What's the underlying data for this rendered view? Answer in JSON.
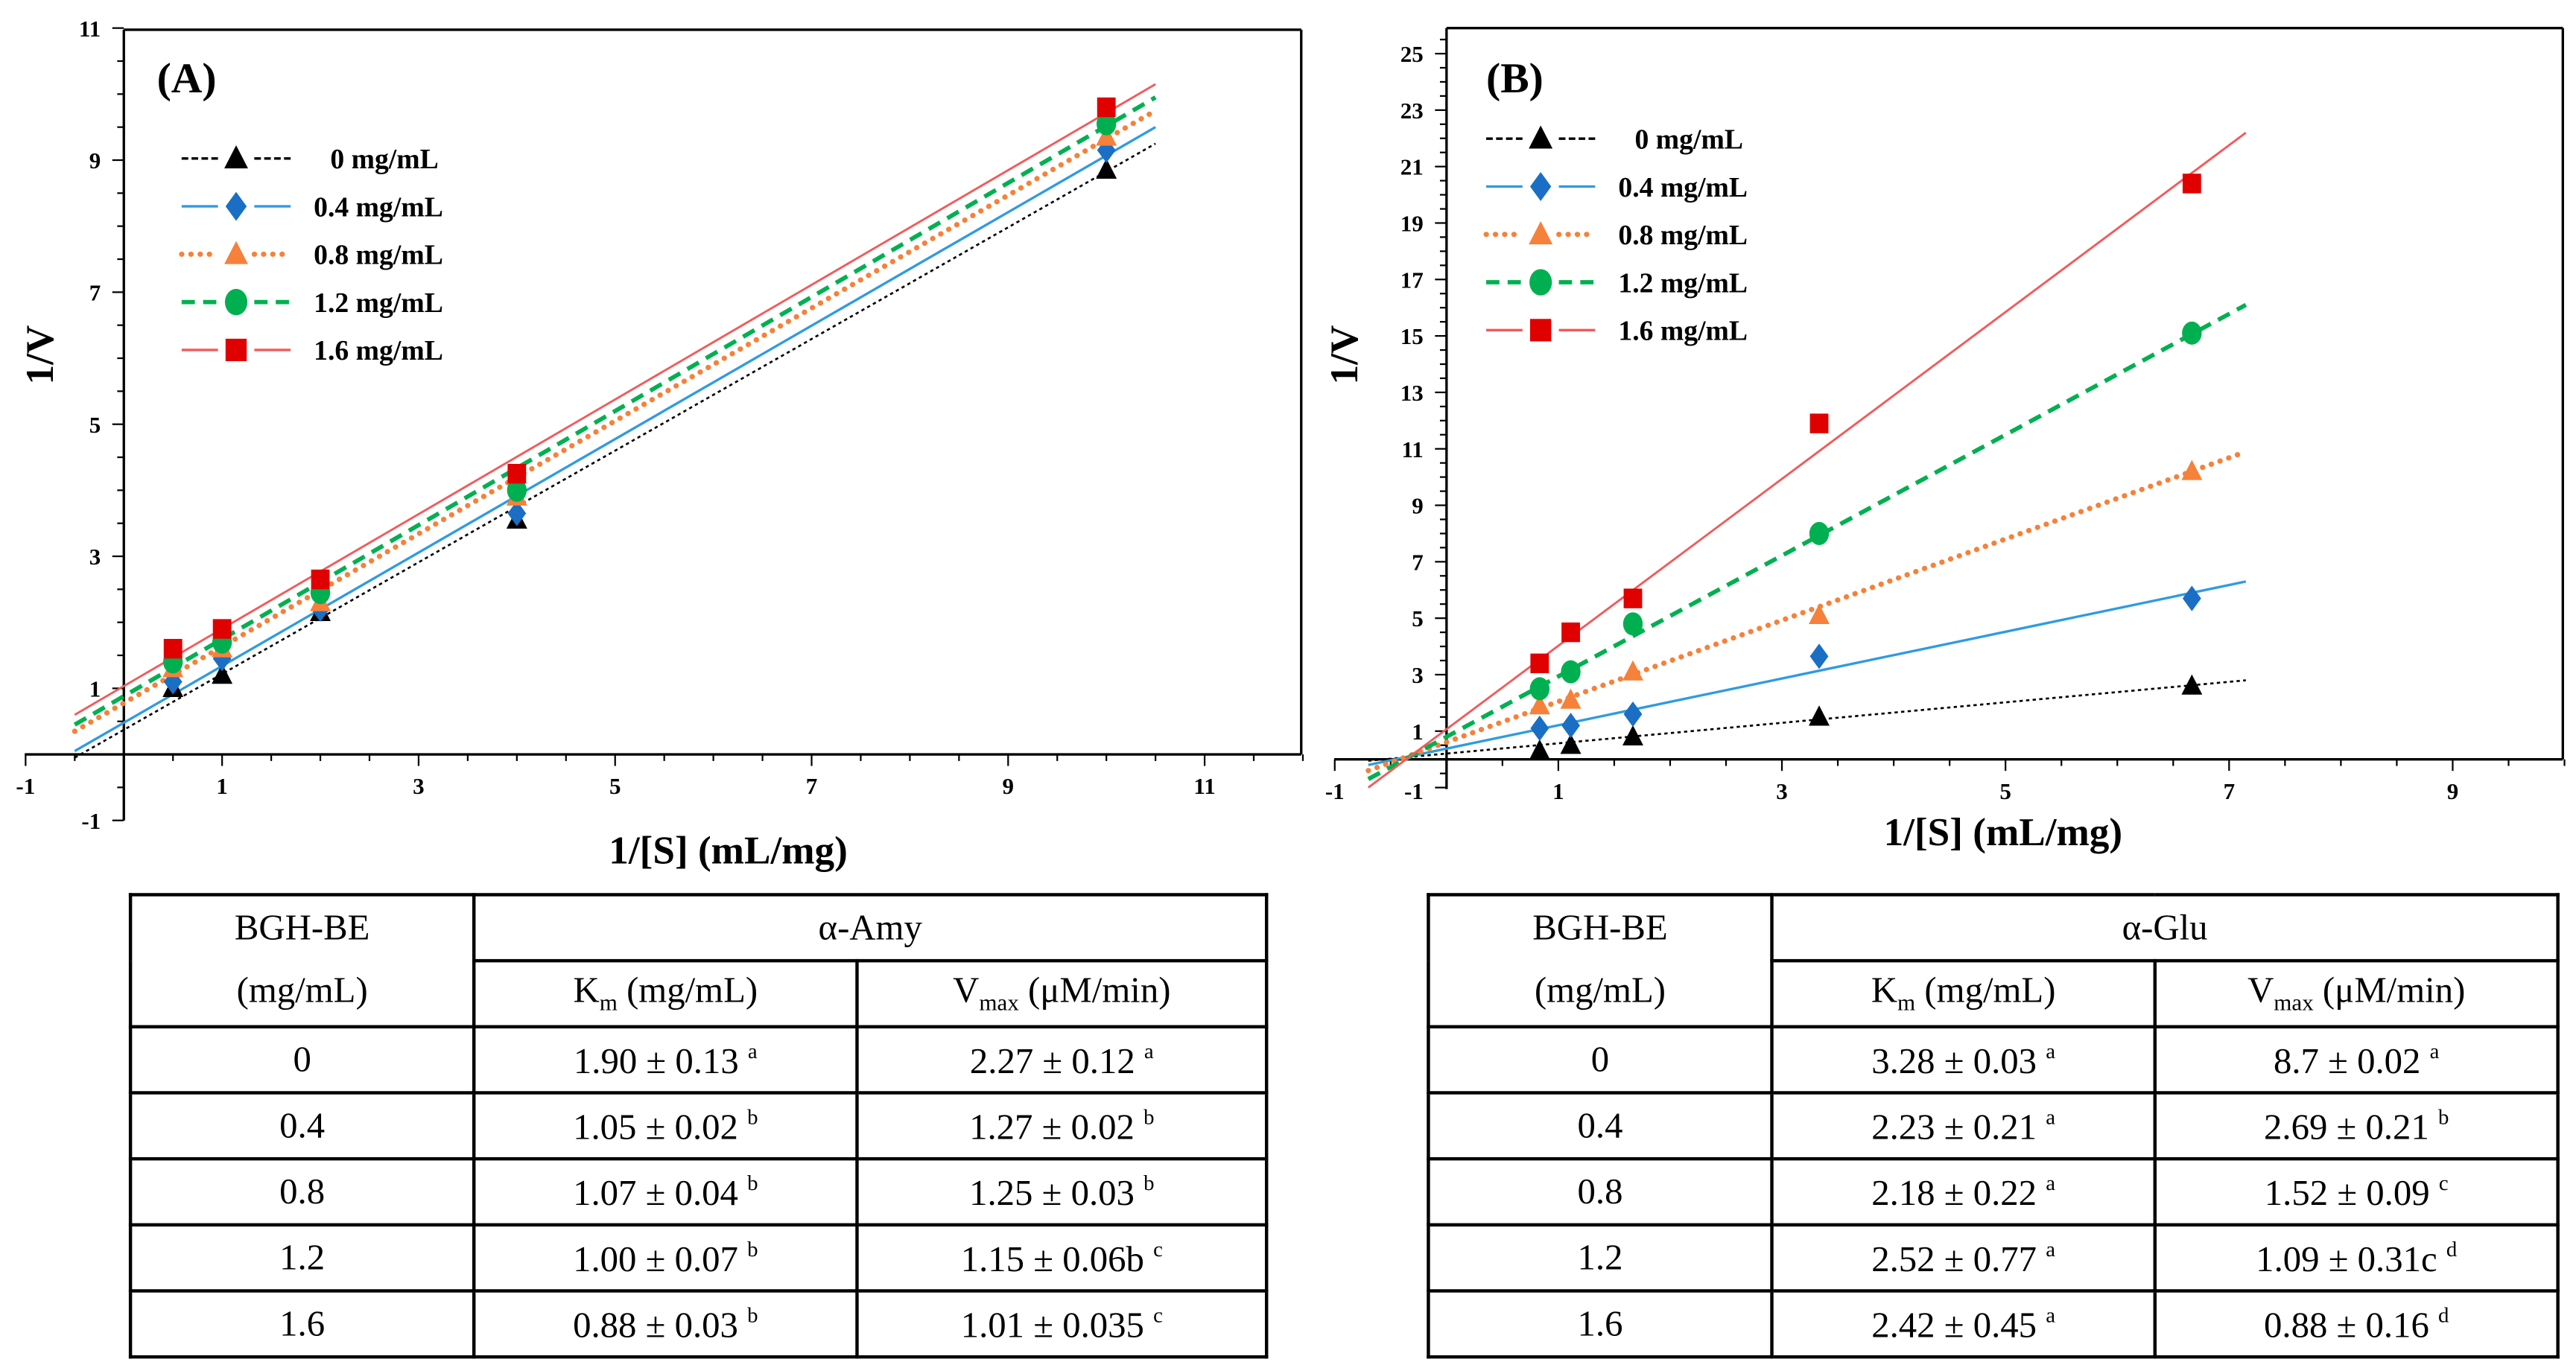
{
  "chart_data": [
    {
      "type": "scatter",
      "panel_label": "(A)",
      "title": "",
      "xlabel": "1/[S] (mL/mg)",
      "ylabel": "1/V",
      "xlim": [
        -1,
        12
      ],
      "ylim": [
        -1,
        11
      ],
      "xticks": [
        "-1",
        "1",
        "3",
        "5",
        "7",
        "9",
        "11"
      ],
      "yticks": [
        "-1",
        "1",
        "3",
        "5",
        "7",
        "9",
        "11"
      ],
      "legend_position": "top-left",
      "x": [
        0.5,
        1,
        2,
        4,
        10
      ],
      "series": [
        {
          "name": "0 mg/mL",
          "color": "#000000",
          "marker": "triangle",
          "line": "dotted-fine",
          "values": [
            1.0,
            1.2,
            2.15,
            3.55,
            8.85
          ],
          "fit": [
            [
              -0.5,
              -0.05
            ],
            [
              10.5,
              9.25
            ]
          ]
        },
        {
          "name": "0.4 mg/mL",
          "color": "#1a6fc4",
          "line_color": "#2f9be0",
          "marker": "diamond",
          "line": "solid",
          "values": [
            1.1,
            1.45,
            2.2,
            3.65,
            9.15
          ],
          "fit": [
            [
              -0.5,
              0.05
            ],
            [
              10.5,
              9.5
            ]
          ]
        },
        {
          "name": "0.8 mg/mL",
          "color": "#f5813a",
          "marker": "triangle",
          "line": "dotted-thick",
          "values": [
            1.3,
            1.6,
            2.3,
            3.9,
            9.35
          ],
          "fit": [
            [
              -0.5,
              0.35
            ],
            [
              10.5,
              9.75
            ]
          ]
        },
        {
          "name": "1.2 mg/mL",
          "color": "#00b050",
          "marker": "circle",
          "line": "dashed",
          "values": [
            1.4,
            1.7,
            2.45,
            4.0,
            9.55
          ],
          "fit": [
            [
              -0.5,
              0.45
            ],
            [
              10.5,
              9.95
            ]
          ]
        },
        {
          "name": "1.6 mg/mL",
          "color": "#e00000",
          "line_color": "#f25a5a",
          "marker": "square",
          "line": "solid-thin",
          "values": [
            1.6,
            1.9,
            2.65,
            4.25,
            9.8
          ],
          "fit": [
            [
              -0.5,
              0.6
            ],
            [
              10.5,
              10.15
            ]
          ]
        }
      ]
    },
    {
      "type": "scatter",
      "panel_label": "(B)",
      "title": "",
      "xlabel": "1/[S] (mL/mg)",
      "ylabel": "1/V",
      "xlim": [
        -1,
        10
      ],
      "ylim": [
        -1,
        26
      ],
      "xticks": [
        "-1",
        "1",
        "3",
        "5",
        "7",
        "9"
      ],
      "yticks": [
        "1",
        "3",
        "5",
        "7",
        "9",
        "11",
        "13",
        "15",
        "17",
        "19",
        "21",
        "23",
        "25"
      ],
      "y_extra_tick": "-1",
      "legend_position": "top-left",
      "x": [
        0.833,
        1.111,
        1.667,
        3.333,
        6.667
      ],
      "series": [
        {
          "name": "0 mg/mL",
          "color": "#000000",
          "marker": "triangle",
          "line": "dotted-fine",
          "values": [
            0.3,
            0.5,
            0.8,
            1.5,
            2.6
          ],
          "fit": [
            [
              -0.7,
              -0.05
            ],
            [
              7.15,
              2.8
            ]
          ]
        },
        {
          "name": "0.4 mg/mL",
          "color": "#1a6fc4",
          "line_color": "#2f9be0",
          "marker": "diamond",
          "line": "solid",
          "values": [
            1.1,
            1.2,
            1.6,
            3.65,
            5.7
          ],
          "fit": [
            [
              -0.7,
              -0.2
            ],
            [
              7.15,
              6.3
            ]
          ]
        },
        {
          "name": "0.8 mg/mL",
          "color": "#f5813a",
          "marker": "triangle",
          "line": "dotted-thick",
          "values": [
            1.9,
            2.1,
            3.1,
            5.1,
            10.2
          ],
          "fit": [
            [
              -0.7,
              -0.4
            ],
            [
              7.15,
              10.9
            ]
          ]
        },
        {
          "name": "1.2 mg/mL",
          "color": "#00b050",
          "marker": "circle",
          "line": "dashed",
          "values": [
            2.5,
            3.1,
            4.8,
            8.0,
            15.1
          ],
          "fit": [
            [
              -0.7,
              -0.7
            ],
            [
              7.15,
              16.1
            ]
          ]
        },
        {
          "name": "1.6 mg/mL",
          "color": "#e00000",
          "line_color": "#f25a5a",
          "marker": "square",
          "line": "solid-thin",
          "values": [
            3.4,
            4.5,
            5.7,
            11.9,
            20.4
          ],
          "fit": [
            [
              -0.7,
              -1.0
            ],
            [
              7.15,
              22.2
            ]
          ]
        }
      ]
    }
  ],
  "tables": [
    {
      "col1_line1": "BGH-BE",
      "col1_line2": "(mg/mL)",
      "enzyme": "α-Amy",
      "km_head": {
        "main": "K",
        "sub": "m",
        "rest": " (mg/mL)"
      },
      "vmax_head": {
        "main": "V",
        "sub": "max",
        "rest": " (μM/min)"
      },
      "rows": [
        {
          "conc": "0",
          "km": "1.90 ± 0.13",
          "km_sup": "a",
          "vmax": "2.27 ± 0.12",
          "vmax_sup": "a"
        },
        {
          "conc": "0.4",
          "km": "1.05 ± 0.02",
          "km_sup": "b",
          "vmax": "1.27 ± 0.02",
          "vmax_sup": "b"
        },
        {
          "conc": "0.8",
          "km": "1.07 ± 0.04",
          "km_sup": "b",
          "vmax": "1.25 ±  0.03",
          "vmax_sup": "b"
        },
        {
          "conc": "1.2",
          "km": "1.00 ± 0.07",
          "km_sup": "b",
          "vmax": "1.15 ± 0.06b",
          "vmax_sup": "c"
        },
        {
          "conc": "1.6",
          "km": "0.88 ± 0.03",
          "km_sup": "b",
          "vmax": "1.01 ± 0.035",
          "vmax_sup": "c"
        }
      ]
    },
    {
      "col1_line1": "BGH-BE",
      "col1_line2": "(mg/mL)",
      "enzyme": "α-Glu",
      "km_head": {
        "main": "K",
        "sub": "m",
        "rest": " (mg/mL)"
      },
      "vmax_head": {
        "main": "V",
        "sub": "max",
        "rest": " (μM/min)"
      },
      "rows": [
        {
          "conc": "0",
          "km": "3.28 ±  0.03",
          "km_sup": "a",
          "vmax": "8.7 ± 0.02",
          "vmax_sup": "a"
        },
        {
          "conc": "0.4",
          "km": "2.23 ±  0.21",
          "km_sup": "a",
          "vmax": "2.69 ± 0.21",
          "vmax_sup": "b"
        },
        {
          "conc": "0.8",
          "km": "2.18 ±  0.22",
          "km_sup": "a",
          "vmax": "1.52 ±  0.09",
          "vmax_sup": "c"
        },
        {
          "conc": "1.2",
          "km": "2.52 ± 0.77",
          "km_sup": "a",
          "vmax": "1.09 ± 0.31c",
          "vmax_sup": "d"
        },
        {
          "conc": "1.6",
          "km": "2.42 ± 0.45",
          "km_sup": "a",
          "vmax": "0.88 ± 0.16",
          "vmax_sup": "d"
        }
      ]
    }
  ]
}
